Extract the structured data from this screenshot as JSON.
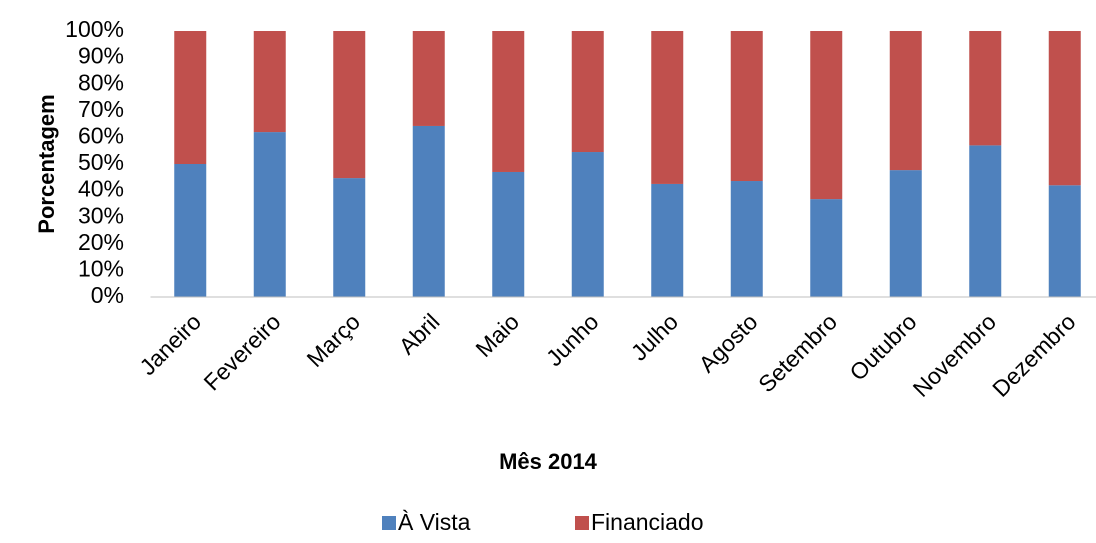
{
  "chart_data": {
    "type": "stacked_bar",
    "x_label": "Mês 2014",
    "y_label": "Porcentagem",
    "categories": [
      "Janeiro",
      "Fevereiro",
      "Março",
      "Abril",
      "Maio",
      "Junho",
      "Julho",
      "Agosto",
      "Setembro",
      "Outubro",
      "Novembro",
      "Dezembro"
    ],
    "series": [
      {
        "name": "À Vista",
        "color": "#4f81bd",
        "values": [
          50,
          62,
          44.7,
          64.3,
          47,
          54.5,
          42.5,
          43.6,
          36.8,
          47.7,
          57,
          42
        ]
      },
      {
        "name": "Financiado",
        "color": "#c0504d",
        "values": [
          50,
          38,
          55.3,
          35.7,
          53,
          45.5,
          57.5,
          56.4,
          63.2,
          52.3,
          43,
          58
        ]
      }
    ],
    "ylim": [
      0,
      100
    ],
    "yticks": [
      {
        "value": 0,
        "label": "0%"
      },
      {
        "value": 10,
        "label": "10%"
      },
      {
        "value": 20,
        "label": "20%"
      },
      {
        "value": 30,
        "label": "30%"
      },
      {
        "value": 40,
        "label": "40%"
      },
      {
        "value": 50,
        "label": "50%"
      },
      {
        "value": 60,
        "label": "60%"
      },
      {
        "value": 70,
        "label": "70%"
      },
      {
        "value": 80,
        "label": "80%"
      },
      {
        "value": 90,
        "label": "90%"
      },
      {
        "value": 100,
        "label": "100%"
      }
    ],
    "legend": "bottom"
  }
}
